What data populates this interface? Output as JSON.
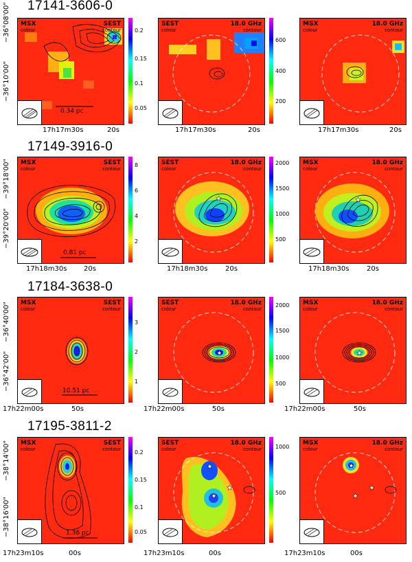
{
  "rows": [
    {
      "title": "17141-3606-0",
      "panels": [
        {
          "left_label": "MSX",
          "left_sub": "colour",
          "right_label": "SEST",
          "right_sub": "contour"
        },
        {
          "left_label": "SEST",
          "left_sub": "colour",
          "right_label": "18.0 GHz",
          "right_sub": "contour"
        },
        {
          "left_label": "MSX",
          "left_sub": "colour",
          "right_label": "18.0 GHz",
          "right_sub": "contour"
        }
      ],
      "colorbar_ticks_1": [
        "0.2",
        "0.15",
        "0.1",
        "0.05"
      ],
      "colorbar_ticks_2": [
        "600",
        "400",
        "200"
      ],
      "dec_ticks": [
        "−36°08'00\"",
        "−36°10'00\""
      ],
      "ra_ticks": [
        "17h17m30s",
        "20s"
      ],
      "scale": "0.34 pc"
    },
    {
      "title": "17149-3916-0",
      "panels": [
        {
          "left_label": "MSX",
          "left_sub": "colour",
          "right_label": "SEST",
          "right_sub": "contour"
        },
        {
          "left_label": "SEST",
          "left_sub": "colour",
          "right_label": "18.0 GHz",
          "right_sub": "contour"
        },
        {
          "left_label": "MSX",
          "left_sub": "colour",
          "right_label": "18.0 GHz",
          "right_sub": "contour"
        }
      ],
      "colorbar_ticks_1": [
        "8",
        "6",
        "4",
        "2"
      ],
      "colorbar_ticks_2": [
        "2000",
        "1500",
        "1000",
        "500"
      ],
      "dec_ticks": [
        "−39°18'00\"",
        "−39°20'00\""
      ],
      "ra_ticks": [
        "17h18m30s",
        "20s"
      ],
      "scale": "0.81 pc"
    },
    {
      "title": "17184-3638-0",
      "panels": [
        {
          "left_label": "MSX",
          "left_sub": "colour",
          "right_label": "SEST",
          "right_sub": "contour"
        },
        {
          "left_label": "SEST",
          "left_sub": "colour",
          "right_label": "18.0 GHz",
          "right_sub": "contour"
        },
        {
          "left_label": "MSX",
          "left_sub": "colour",
          "right_label": "18.0 GHz",
          "right_sub": "contour"
        }
      ],
      "colorbar_ticks_1": [
        "3",
        "2",
        "1"
      ],
      "colorbar_ticks_2": [
        "2000",
        "1500",
        "1000",
        "500"
      ],
      "dec_ticks": [
        "−36°40'00\"",
        "−36°42'00\""
      ],
      "ra_ticks": [
        "17h22m00s",
        "50s"
      ],
      "scale": "10.51 pc"
    },
    {
      "title": "17195-3811-2",
      "panels": [
        {
          "left_label": "MSX",
          "left_sub": "colour",
          "right_label": "SEST",
          "right_sub": "contour"
        },
        {
          "left_label": "SEST",
          "left_sub": "colour",
          "right_label": "18.0 GHz",
          "right_sub": "contour"
        },
        {
          "left_label": "MSX",
          "left_sub": "colour",
          "right_label": "18.0 GHz",
          "right_sub": "contour"
        }
      ],
      "colorbar_ticks_1": [
        "0.2",
        "0.15",
        "0.1",
        "0.05"
      ],
      "colorbar_ticks_2": [
        "1000",
        "500"
      ],
      "dec_ticks": [
        "−38°14'00\"",
        "−38°16'00\""
      ],
      "ra_ticks": [
        "17h23m10s",
        "00s"
      ],
      "scale": "1.36 pc"
    }
  ]
}
